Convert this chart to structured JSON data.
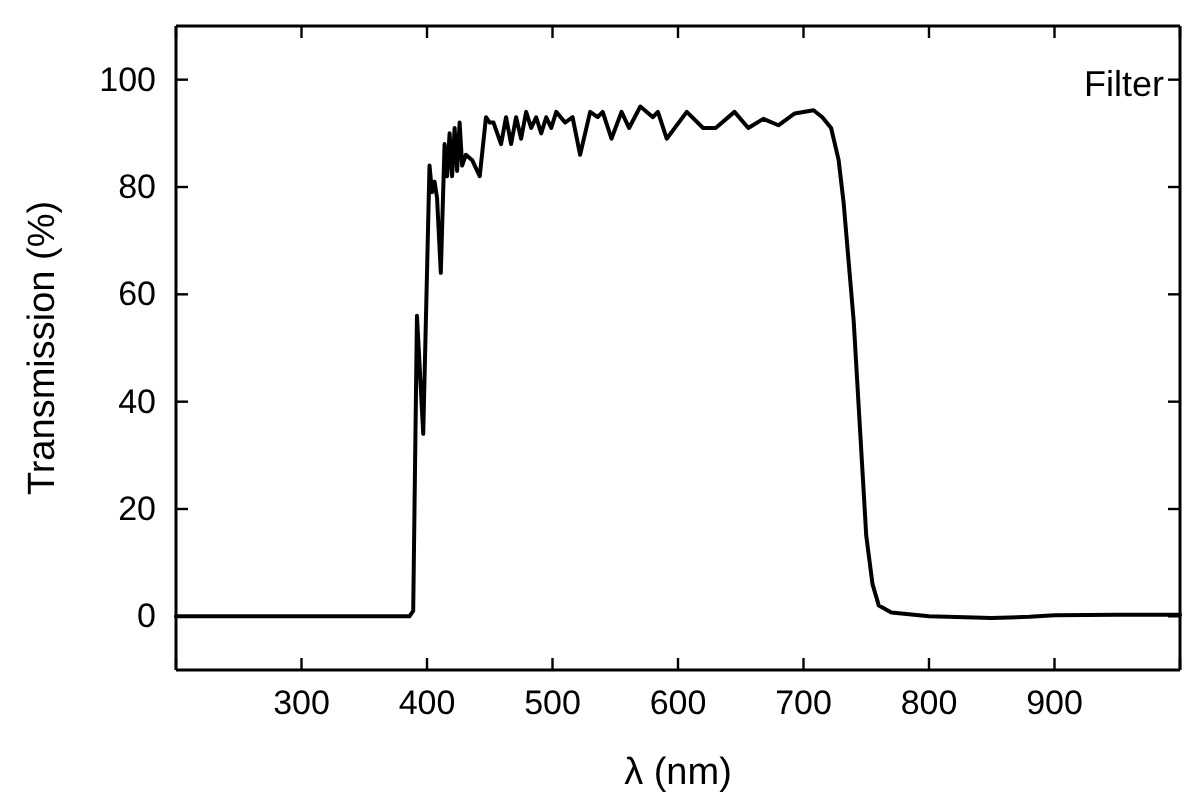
{
  "chart_data": {
    "type": "line",
    "xlabel": "λ (nm)",
    "ylabel": "Transmission (%)",
    "annotations": [
      "Filter"
    ],
    "xlim": [
      200,
      1000
    ],
    "xticks": [
      {
        "value": 200,
        "label": null
      },
      300,
      400,
      500,
      600,
      700,
      800,
      900,
      {
        "value": 1000,
        "label": null
      }
    ],
    "ylim": [
      -10,
      110
    ],
    "yticks": [
      0,
      20,
      40,
      60,
      80,
      100
    ],
    "grid": false,
    "marker": "none",
    "line_style": "solid",
    "series": [
      {
        "color": "#000000",
        "x": [
          200,
          300,
          386,
          389,
          392,
          397,
          402,
          404,
          406,
          408,
          411,
          414,
          416,
          418,
          420,
          422,
          424,
          426,
          428,
          431,
          436,
          442,
          447,
          450,
          453,
          459,
          463,
          467,
          471,
          475,
          479,
          483,
          487,
          491,
          495,
          499,
          503,
          510,
          516,
          522,
          530,
          536,
          540,
          547,
          555,
          561,
          570,
          580,
          584,
          591,
          607,
          620,
          630,
          645,
          656,
          668,
          680,
          693,
          708,
          715,
          722,
          728,
          732,
          740,
          745,
          750,
          755,
          760,
          770,
          800,
          850,
          880,
          900,
          950,
          1000
        ],
        "values": [
          0,
          0,
          0,
          1,
          56,
          34,
          84,
          79,
          81,
          78,
          64,
          88,
          82,
          90,
          82,
          91,
          83,
          92,
          84,
          86,
          85,
          82,
          93,
          92,
          92,
          88,
          93,
          88,
          93,
          89,
          94,
          91,
          93,
          90,
          93,
          91,
          94,
          92,
          93,
          86,
          94,
          93,
          94,
          89,
          94,
          91,
          95,
          93,
          94,
          89,
          94,
          91,
          91,
          94,
          91,
          92.7,
          91.5,
          93.7,
          94.3,
          93,
          91,
          85,
          77,
          55,
          35,
          15,
          6,
          2,
          0.7,
          0,
          -0.3,
          -0.1,
          0.2,
          0.3,
          0.3
        ]
      }
    ]
  }
}
